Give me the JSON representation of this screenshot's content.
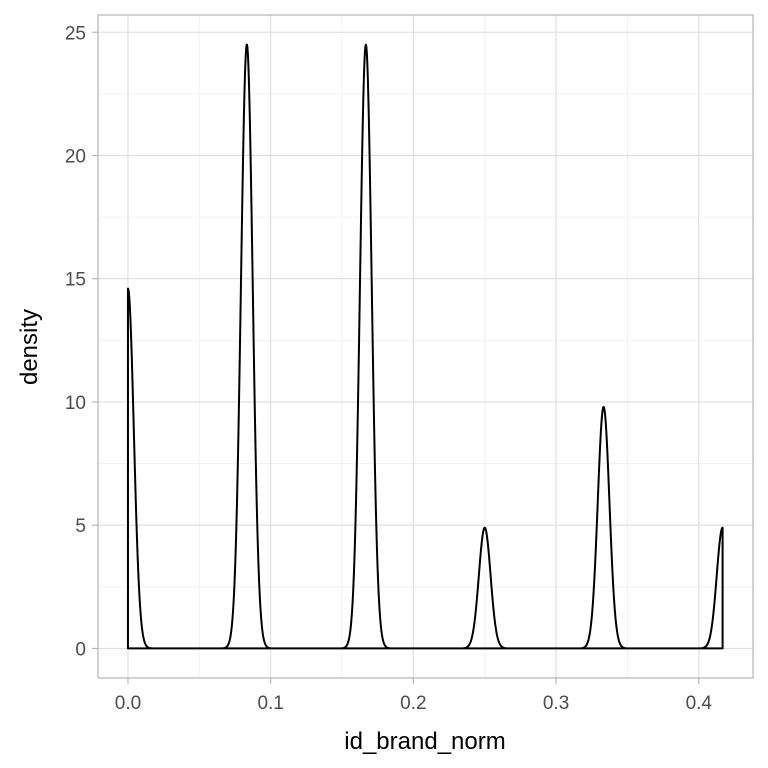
{
  "chart_data": {
    "type": "line",
    "title": "",
    "xlabel": "id_brand_norm",
    "ylabel": "density",
    "xlim": [
      -0.021,
      0.438
    ],
    "ylim": [
      -1.2,
      25.7
    ],
    "x_ticks": [
      0.0,
      0.1,
      0.2,
      0.3,
      0.4
    ],
    "x_tick_labels": [
      "0.0",
      "0.1",
      "0.2",
      "0.3",
      "0.4"
    ],
    "y_ticks": [
      0,
      5,
      10,
      15,
      20,
      25
    ],
    "y_tick_labels": [
      "0",
      "5",
      "10",
      "15",
      "20",
      "25"
    ],
    "grid": true,
    "legend": "none",
    "series": [
      {
        "line_color": "#000000",
        "kernel_sd": 0.0041,
        "support": [
          0.0,
          0.4167
        ],
        "peaks": [
          {
            "x": 0.0,
            "y": 14.6
          },
          {
            "x": 0.0833,
            "y": 24.5
          },
          {
            "x": 0.1667,
            "y": 24.5
          },
          {
            "x": 0.25,
            "y": 4.9
          },
          {
            "x": 0.3333,
            "y": 9.8
          },
          {
            "x": 0.4167,
            "y": 4.9
          }
        ]
      }
    ]
  }
}
